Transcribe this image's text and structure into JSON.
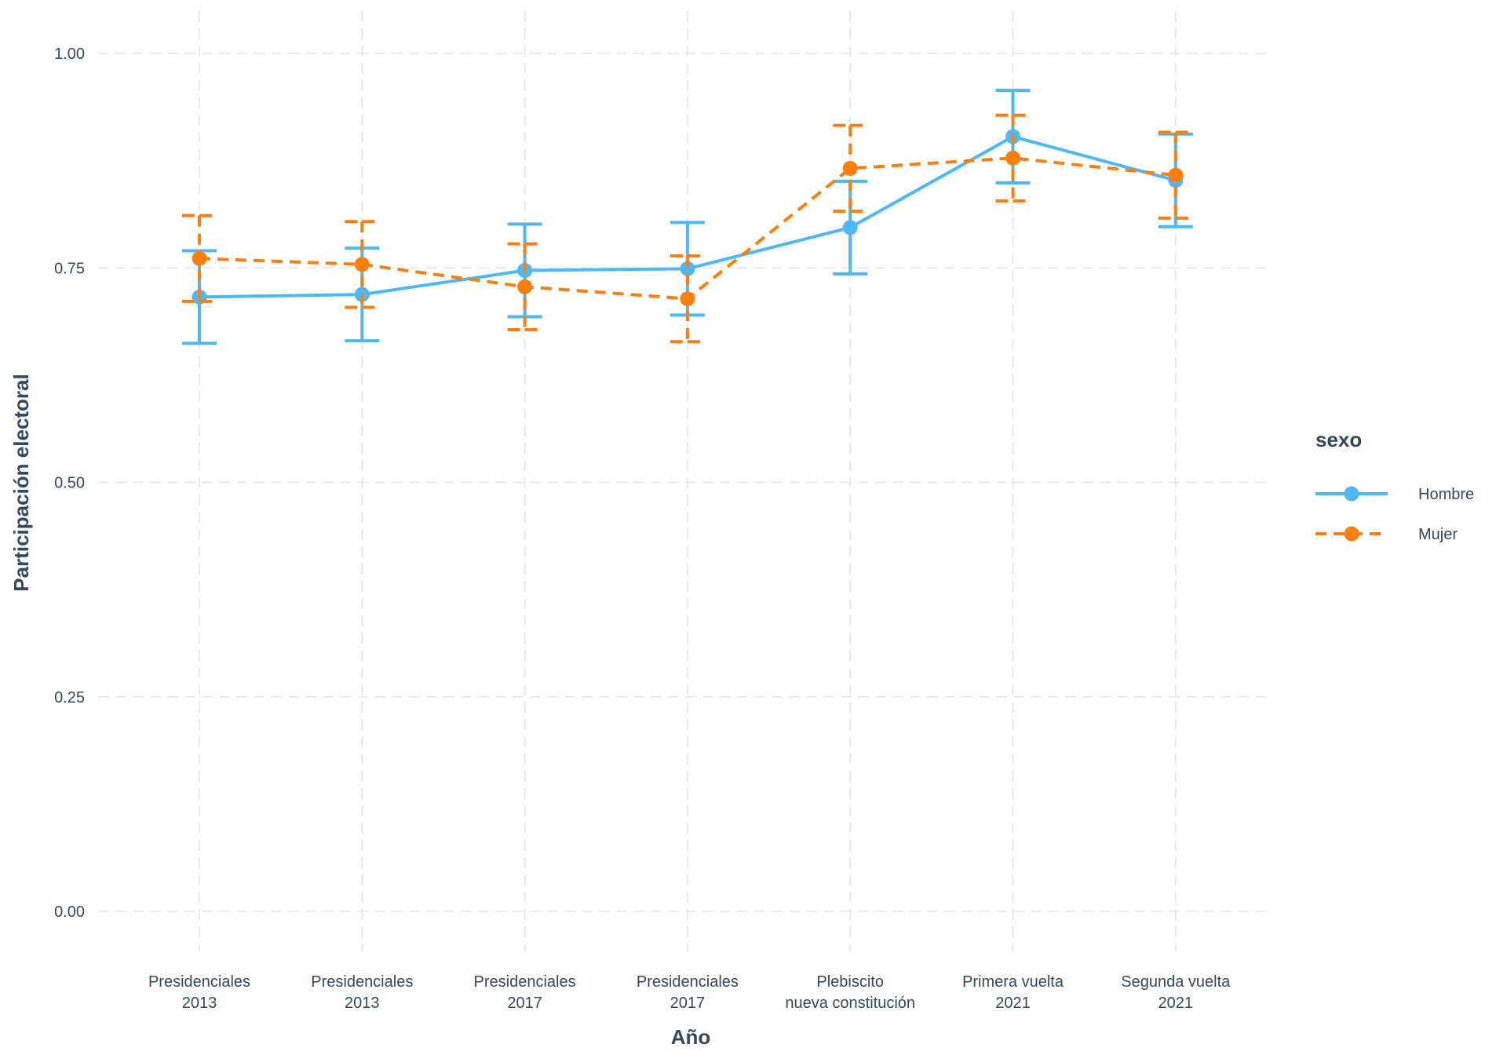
{
  "chart_data": {
    "type": "line",
    "title": "",
    "xlabel": "Año",
    "ylabel": "Participación electoral",
    "ylim": [
      -0.05,
      1.03
    ],
    "yticks": [
      "0.00",
      "0.25",
      "0.50",
      "0.75",
      "1.00"
    ],
    "ytick_values": [
      0,
      0.25,
      0.5,
      0.75,
      1.0
    ],
    "categories": [
      [
        "Presidenciales",
        "2013"
      ],
      [
        "Presidenciales",
        "2013"
      ],
      [
        "Presidenciales",
        "2017"
      ],
      [
        "Presidenciales",
        "2017"
      ],
      [
        "Plebiscito",
        "nueva constitución"
      ],
      [
        "Primera vuelta",
        "2021"
      ],
      [
        "Segunda vuelta",
        "2021"
      ]
    ],
    "grid": true,
    "legend": {
      "title": "sexo",
      "placement": "right"
    },
    "series": [
      {
        "name": "Hombre",
        "color": "#4db8f5",
        "dash": "solid",
        "values": [
          0.716,
          0.719,
          0.747,
          0.749,
          0.797,
          0.903,
          0.852
        ],
        "lower": [
          0.662,
          0.665,
          0.693,
          0.695,
          0.743,
          0.849,
          0.798
        ],
        "upper": [
          0.77,
          0.773,
          0.801,
          0.803,
          0.851,
          0.957,
          0.906
        ]
      },
      {
        "name": "Mujer",
        "color": "#ff7f0e",
        "dash": "dashed",
        "values": [
          0.761,
          0.754,
          0.728,
          0.714,
          0.866,
          0.878,
          0.858
        ],
        "lower": [
          0.711,
          0.704,
          0.678,
          0.664,
          0.816,
          0.828,
          0.808
        ],
        "upper": [
          0.811,
          0.804,
          0.778,
          0.764,
          0.916,
          0.928,
          0.908
        ]
      }
    ]
  }
}
